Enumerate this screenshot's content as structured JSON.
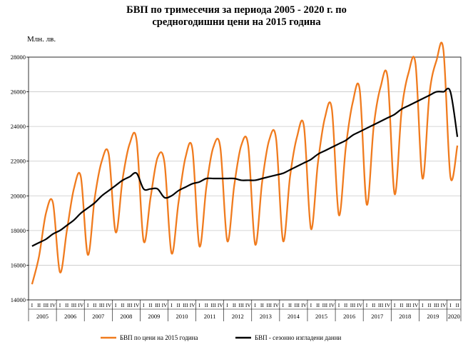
{
  "title_line1": "БВП по тримесечия за периода 2005 - 2020 г. по",
  "title_line2": "средногодишни цени на 2015 година",
  "unit_label": "Млн. лв.",
  "colors": {
    "series1": "#f07b1e",
    "series2": "#000000",
    "axis": "#000000"
  },
  "chart_data": {
    "type": "line",
    "ylim": [
      14000,
      28000
    ],
    "yticks": [
      14000,
      16000,
      18000,
      20000,
      22000,
      24000,
      26000,
      28000
    ],
    "ytick_labels": [
      "14000",
      "16000",
      "18000",
      "20000",
      "22000",
      "24000",
      "26000",
      "28000"
    ],
    "quarter_labels": [
      "I",
      "II",
      "III",
      "IV"
    ],
    "years": [
      "2005",
      "2006",
      "2007",
      "2008",
      "2009",
      "2010",
      "2011",
      "2012",
      "2013",
      "2014",
      "2015",
      "2016",
      "2017",
      "2018",
      "2019",
      "2020"
    ],
    "years_quarters": [
      4,
      4,
      4,
      4,
      4,
      4,
      4,
      4,
      4,
      4,
      4,
      4,
      4,
      4,
      4,
      2
    ],
    "series": [
      {
        "name": "БВП по цени на 2015 година",
        "color": "#f07b1e",
        "values": [
          14900,
          16500,
          19000,
          19600,
          15600,
          18000,
          20400,
          21100,
          16600,
          19900,
          22000,
          22400,
          17900,
          21000,
          23000,
          23200,
          17400,
          19900,
          22200,
          21900,
          16700,
          19600,
          22200,
          22700,
          17100,
          20500,
          22800,
          22800,
          17400,
          20600,
          22900,
          22900,
          17200,
          20800,
          23200,
          23300,
          17400,
          21100,
          23400,
          24000,
          18100,
          21900,
          24500,
          25000,
          18900,
          22800,
          25400,
          26100,
          19500,
          24000,
          26300,
          26800,
          20100,
          24900,
          27100,
          27600,
          21000,
          25900,
          27800,
          28400,
          21100,
          22900
        ]
      },
      {
        "name": "БВП - сезонно изгладени данни",
        "color": "#000000",
        "values": [
          17100,
          17300,
          17500,
          17800,
          18000,
          18300,
          18600,
          19000,
          19300,
          19600,
          20000,
          20300,
          20600,
          20900,
          21100,
          21300,
          20400,
          20400,
          20400,
          19900,
          20000,
          20300,
          20500,
          20700,
          20800,
          21000,
          21000,
          21000,
          21000,
          21000,
          20900,
          20900,
          20900,
          21000,
          21100,
          21200,
          21300,
          21500,
          21700,
          21900,
          22100,
          22400,
          22600,
          22800,
          23000,
          23200,
          23500,
          23700,
          23900,
          24100,
          24300,
          24500,
          24700,
          25000,
          25200,
          25400,
          25600,
          25800,
          26000,
          26000,
          26000,
          23400
        ]
      }
    ]
  }
}
